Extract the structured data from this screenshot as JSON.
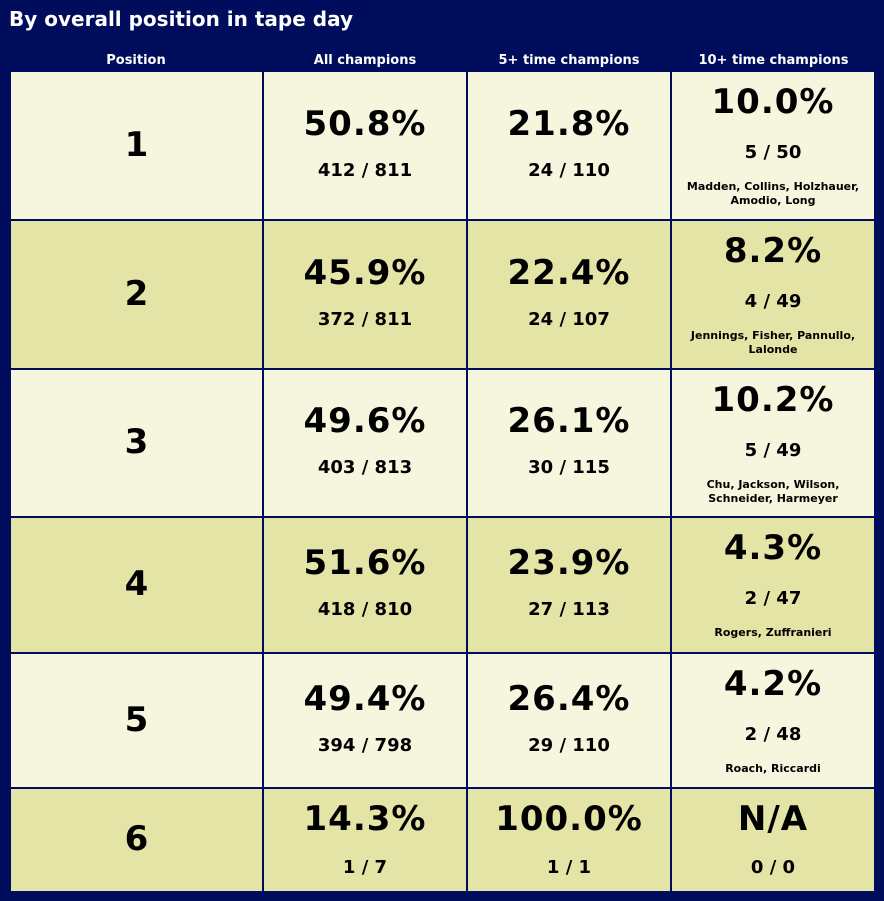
{
  "title": "By overall position in tape day",
  "headers": {
    "position": "Position",
    "all": "All champions",
    "five": "5+ time champions",
    "ten": "10+ time champions"
  },
  "rows": [
    {
      "position": "1",
      "all": {
        "pct": "50.8%",
        "frac": "412 / 811"
      },
      "five": {
        "pct": "21.8%",
        "frac": "24 / 110"
      },
      "ten": {
        "pct": "10.0%",
        "frac": "5 / 50",
        "names": "Madden, Collins, Holzhauer, Amodio, Long"
      }
    },
    {
      "position": "2",
      "all": {
        "pct": "45.9%",
        "frac": "372 / 811"
      },
      "five": {
        "pct": "22.4%",
        "frac": "24 / 107"
      },
      "ten": {
        "pct": "8.2%",
        "frac": "4 / 49",
        "names": "Jennings, Fisher, Pannullo, Lalonde"
      }
    },
    {
      "position": "3",
      "all": {
        "pct": "49.6%",
        "frac": "403 / 813"
      },
      "five": {
        "pct": "26.1%",
        "frac": "30 / 115"
      },
      "ten": {
        "pct": "10.2%",
        "frac": "5 / 49",
        "names": "Chu, Jackson, Wilson, Schneider, Harmeyer"
      }
    },
    {
      "position": "4",
      "all": {
        "pct": "51.6%",
        "frac": "418 / 810"
      },
      "five": {
        "pct": "23.9%",
        "frac": "27 / 113"
      },
      "ten": {
        "pct": "4.3%",
        "frac": "2 / 47",
        "names": "Rogers, Zuffranieri"
      }
    },
    {
      "position": "5",
      "all": {
        "pct": "49.4%",
        "frac": "394 / 798"
      },
      "five": {
        "pct": "26.4%",
        "frac": "29 / 110"
      },
      "ten": {
        "pct": "4.2%",
        "frac": "2 / 48",
        "names": "Roach, Riccardi"
      }
    },
    {
      "position": "6",
      "all": {
        "pct": "14.3%",
        "frac": "1 / 7"
      },
      "five": {
        "pct": "100.0%",
        "frac": "1 / 1"
      },
      "ten": {
        "pct": "N/A",
        "frac": "0 / 0",
        "names": ""
      }
    }
  ],
  "colors": {
    "background": "#000c5c",
    "row_light": "#f6f6de",
    "row_dark": "#e4e4a6"
  }
}
